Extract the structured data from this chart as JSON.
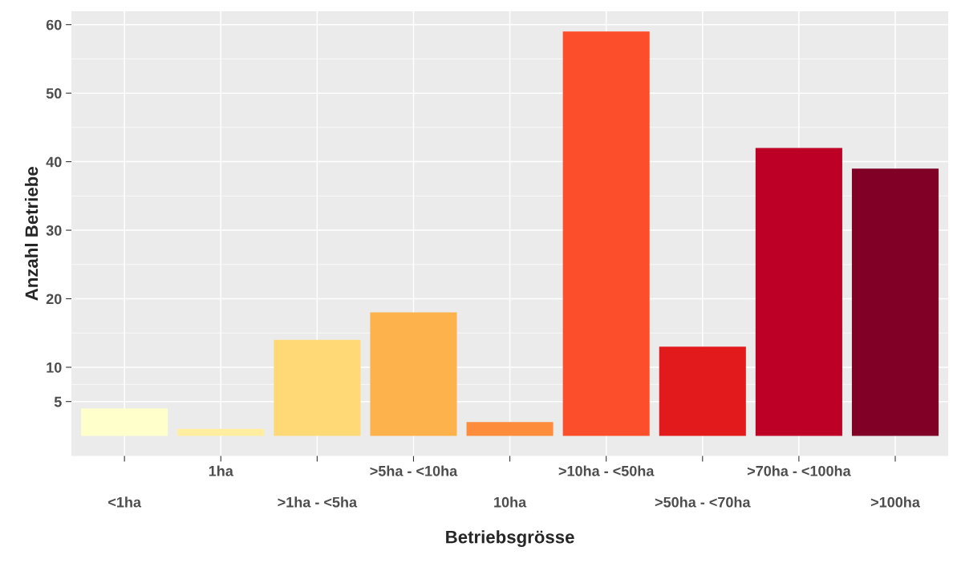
{
  "chart_data": {
    "type": "bar",
    "xlabel": "Betriebsgrösse",
    "ylabel": "Anzahl Betriebe",
    "categories": [
      "<1ha",
      "1ha",
      ">1ha - <5ha",
      ">5ha - <10ha",
      "10ha",
      ">10ha - <50ha",
      ">50ha - <70ha",
      ">70ha - <100ha",
      ">100ha"
    ],
    "values": [
      4,
      1,
      14,
      18,
      2,
      59,
      13,
      42,
      39
    ],
    "colors": [
      "#ffffcc",
      "#ffeda0",
      "#fed976",
      "#feb24c",
      "#fd8d3c",
      "#fc4e2a",
      "#e31a1c",
      "#bd0026",
      "#800026"
    ],
    "ylim": [
      -2.95,
      61.95
    ],
    "yticks": [
      5,
      10,
      20,
      30,
      40,
      50,
      60
    ],
    "grid": true
  }
}
